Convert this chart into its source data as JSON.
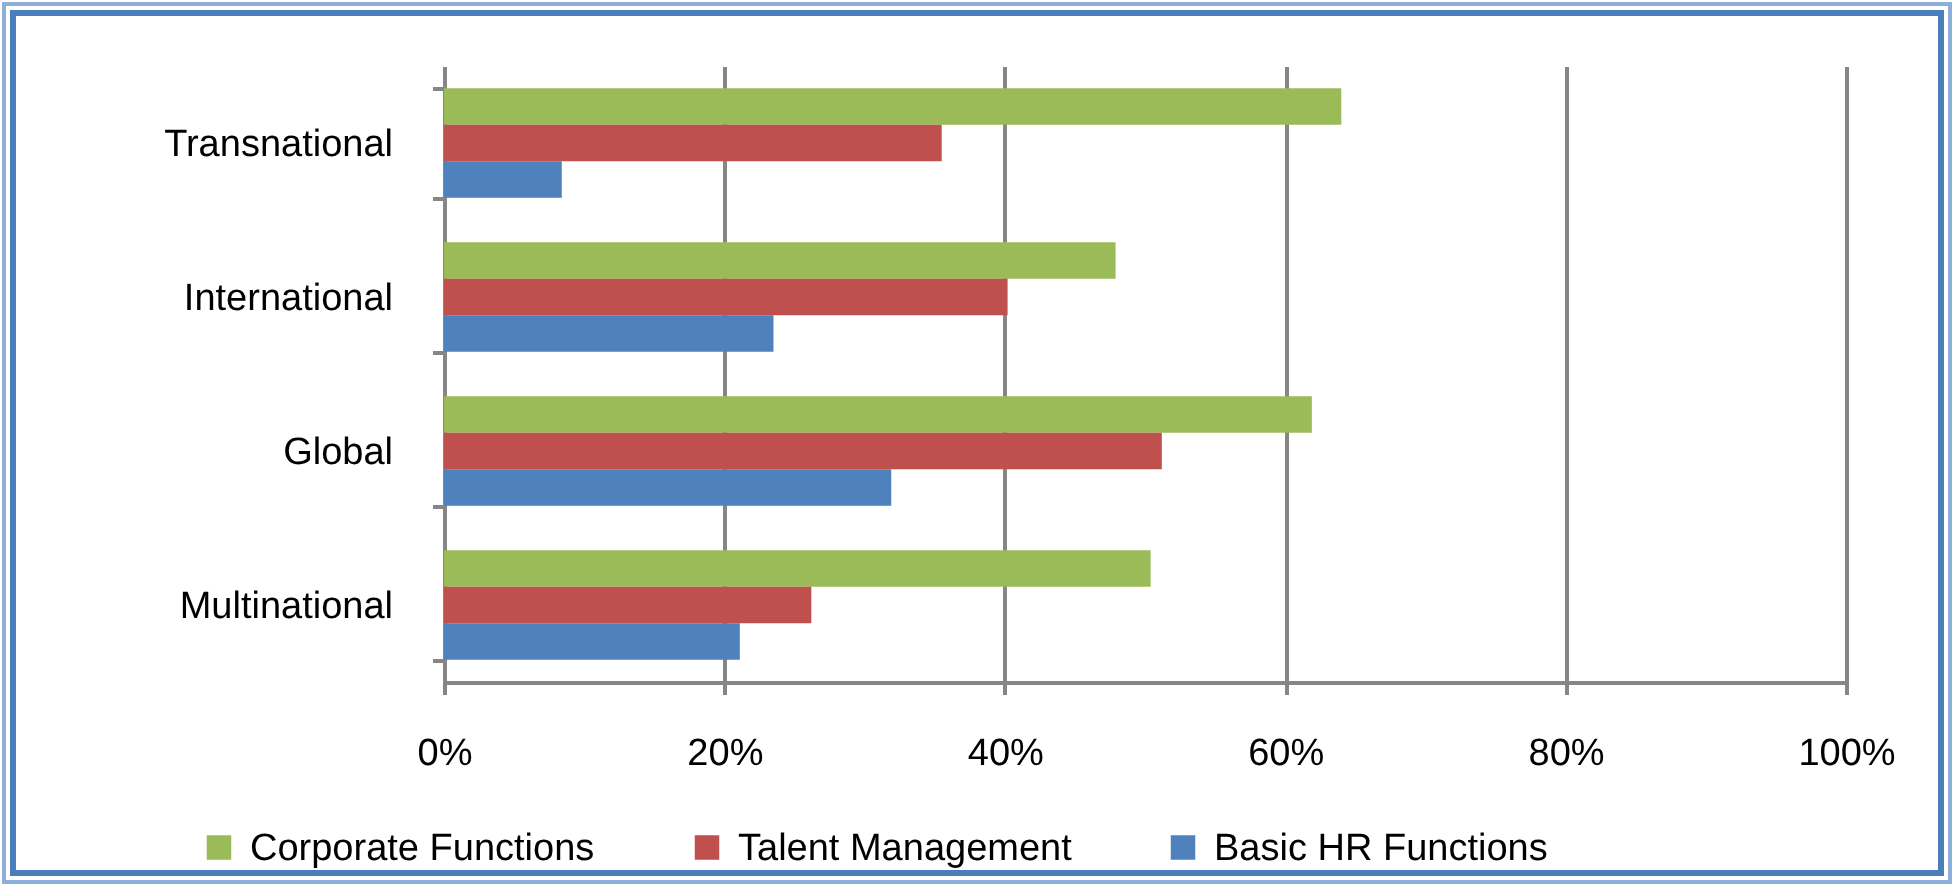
{
  "chart_data": {
    "type": "bar",
    "orientation": "horizontal",
    "categories": [
      "Transnational",
      "International",
      "Global",
      "Multinational"
    ],
    "series": [
      {
        "name": "Corporate Functions",
        "color": "#9bbb59",
        "values": [
          64,
          47.9,
          61.9,
          50.4
        ]
      },
      {
        "name": "Talent Management",
        "color": "#c0504d",
        "values": [
          35.5,
          40.2,
          51.2,
          26.2
        ]
      },
      {
        "name": "Basic HR Functions",
        "color": "#4f81bd",
        "values": [
          8.4,
          23.5,
          31.9,
          21.1
        ]
      }
    ],
    "xlim": [
      0,
      100
    ],
    "xticks": [
      {
        "value": 0,
        "label": "0%"
      },
      {
        "value": 20,
        "label": "20%"
      },
      {
        "value": 40,
        "label": "40%"
      },
      {
        "value": 60,
        "label": "60%"
      },
      {
        "value": 80,
        "label": "80%"
      },
      {
        "value": 100,
        "label": "100%"
      }
    ],
    "grid": "x",
    "legend": "bottom"
  }
}
